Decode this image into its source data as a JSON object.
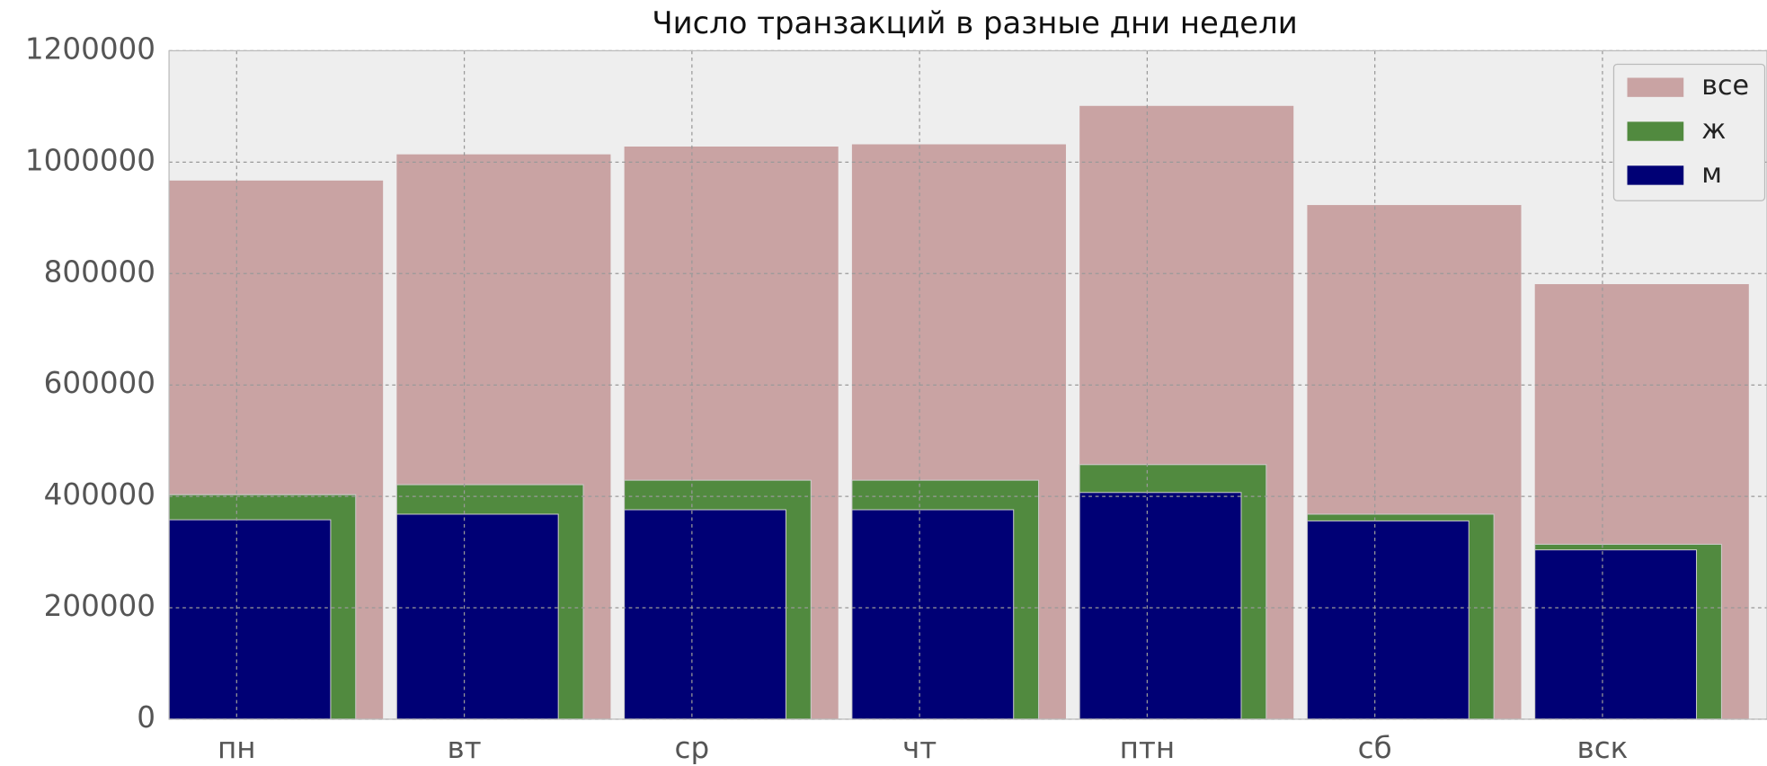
{
  "chart_data": {
    "type": "bar",
    "title": "Число транзакций в разные дни недели",
    "categories": [
      "пн",
      "вт",
      "ср",
      "чт",
      "птн",
      "сб",
      "вск"
    ],
    "series": [
      {
        "name": "все",
        "color": "#c9a3a3",
        "values": [
          967000,
          1014000,
          1028000,
          1032000,
          1101000,
          923000,
          781000
        ]
      },
      {
        "name": "ж",
        "color": "#518a3f",
        "values": [
          403000,
          421000,
          429000,
          429000,
          457000,
          368000,
          314000
        ]
      },
      {
        "name": "м",
        "color": "#000075",
        "values": [
          358000,
          368000,
          376000,
          376000,
          407000,
          356000,
          304000
        ]
      }
    ],
    "ylim": [
      0,
      1200000
    ],
    "yticks": [
      0,
      200000,
      400000,
      600000,
      800000,
      1000000,
      1200000
    ],
    "grid": true,
    "legend": "upper right"
  }
}
